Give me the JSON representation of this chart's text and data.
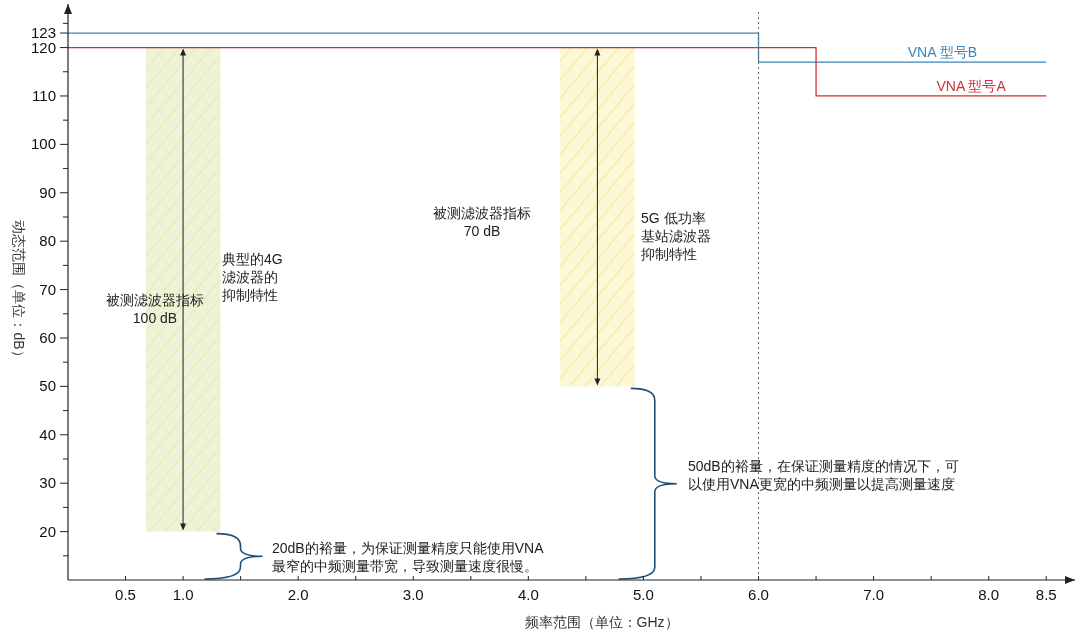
{
  "chart_data": {
    "type": "bar",
    "xlabel": "频率范围（单位：GHz）",
    "ylabel": "动态范围（单位：dB）",
    "xlim": [
      0,
      8.75
    ],
    "ylim": [
      10,
      129
    ],
    "xticks": [
      {
        "value": 0.5,
        "label": "0.5"
      },
      {
        "value": 1,
        "label": "1.0"
      },
      {
        "value": 1.5,
        "label": null
      },
      {
        "value": 2,
        "label": "2.0"
      },
      {
        "value": 2.5,
        "label": null
      },
      {
        "value": 3,
        "label": "3.0"
      },
      {
        "value": 3.5,
        "label": null
      },
      {
        "value": 4,
        "label": "4.0"
      },
      {
        "value": 4.5,
        "label": null
      },
      {
        "value": 5,
        "label": "5.0"
      },
      {
        "value": 5.5,
        "label": null
      },
      {
        "value": 6,
        "label": "6.0"
      },
      {
        "value": 6.5,
        "label": null
      },
      {
        "value": 7,
        "label": "7.0"
      },
      {
        "value": 7.5,
        "label": null
      },
      {
        "value": 8,
        "label": "8.0"
      },
      {
        "value": 8.5,
        "label": "8.5"
      }
    ],
    "yticks": [
      {
        "value": 15,
        "label": null
      },
      20,
      {
        "value": 25,
        "label": null
      },
      30,
      {
        "value": 35,
        "label": null
      },
      40,
      {
        "value": 45,
        "label": null
      },
      50,
      {
        "value": 55,
        "label": null
      },
      60,
      {
        "value": 65,
        "label": null
      },
      70,
      {
        "value": 75,
        "label": null
      },
      80,
      {
        "value": 85,
        "label": null
      },
      90,
      {
        "value": 95,
        "label": null
      },
      100,
      {
        "value": 105,
        "label": null
      },
      110,
      {
        "value": 115,
        "label": null
      },
      120,
      123,
      {
        "value": 125,
        "label": null
      }
    ],
    "grid": false,
    "legend": false,
    "series": [
      {
        "x": [
          1.0,
          4.6
        ],
        "base": [
          20,
          50
        ],
        "values": [
          100,
          70
        ],
        "colors": [
          "#eef3d8",
          "#fcf7d6"
        ]
      },
      {
        "type": "step",
        "name": "VNA 型号B",
        "color": "#3b86b4",
        "x": [
          0,
          6,
          8.5
        ],
        "values": [
          123,
          117,
          117
        ]
      },
      {
        "type": "step",
        "name": "VNA 型号A",
        "color": "#d0303a",
        "x": [
          0,
          6.5,
          8.5
        ],
        "values": [
          120,
          110,
          110
        ]
      }
    ],
    "ref_lines": [
      {
        "axis": "x",
        "value": 6,
        "color": "#666666",
        "line_style": "dotted"
      }
    ],
    "annotations": [
      "被测滤波器指标100 dB",
      "典型的4G滤波器的抑制特性",
      "被测滤波器指标70 dB",
      "5G 低功率基站滤波器抑制特性",
      "20dB的裕量，为保证测量精度只能使用VNA最窄的中频测量带宽，导致测量速度很慢。",
      "50dB的裕量，在保证测量精度的情况下，可以使用VNA更宽的中频测量以提高测量速度"
    ]
  }
}
